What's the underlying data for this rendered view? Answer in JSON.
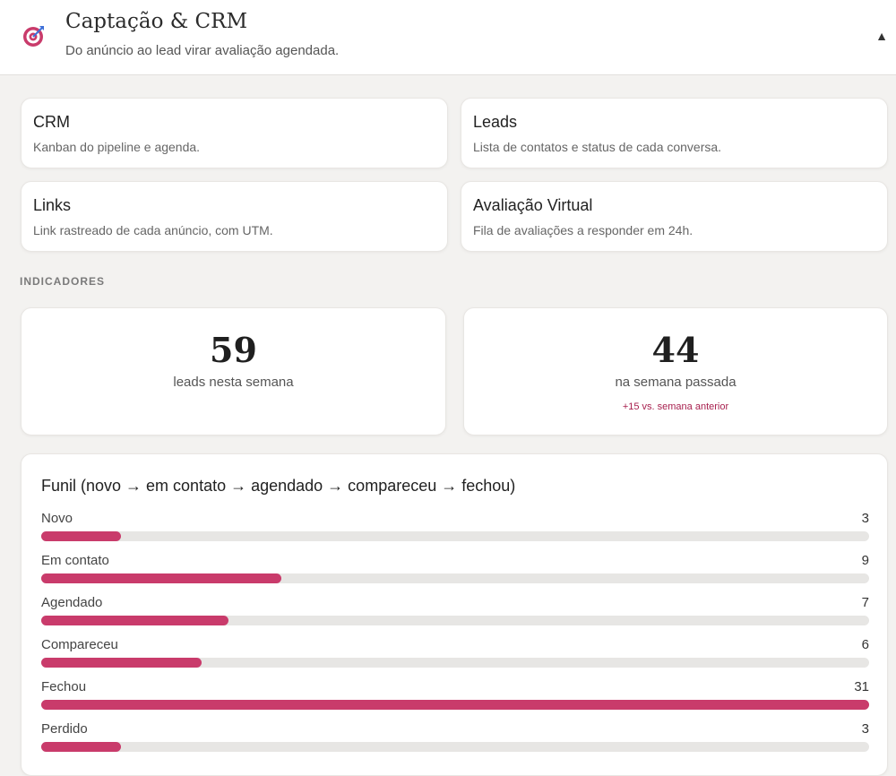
{
  "header": {
    "title": "Captação & CRM",
    "subtitle": "Do anúncio ao lead virar avaliação agendada.",
    "logo_icon": "target-icon",
    "collapse_icon": "caret-up-icon",
    "collapse_glyph": "▲"
  },
  "nav_cards": [
    {
      "title": "CRM",
      "description": "Kanban do pipeline e agenda."
    },
    {
      "title": "Leads",
      "description": "Lista de contatos e status de cada conversa."
    },
    {
      "title": "Links",
      "description": "Link rastreado de cada anúncio, com UTM."
    },
    {
      "title": "Avaliação Virtual",
      "description": "Fila de avaliações a responder em 24h."
    }
  ],
  "indicators": {
    "section_label": "INDICADORES",
    "this_week": {
      "value": "59",
      "label": "leads nesta semana"
    },
    "last_week": {
      "value": "44",
      "label": "na semana passada",
      "delta": "+15 vs. semana anterior"
    }
  },
  "funnel": {
    "title": "Funil (novo → em contato → agendado → compareceu → fechou)",
    "max": 31,
    "bar_color": "#c93b6b",
    "track_color": "#e7e6e4",
    "stages": [
      {
        "label": "Novo",
        "count": 3
      },
      {
        "label": "Em contato",
        "count": 9
      },
      {
        "label": "Agendado",
        "count": 7
      },
      {
        "label": "Compareceu",
        "count": 6
      },
      {
        "label": "Fechou",
        "count": 31
      },
      {
        "label": "Perdido",
        "count": 3
      }
    ]
  }
}
